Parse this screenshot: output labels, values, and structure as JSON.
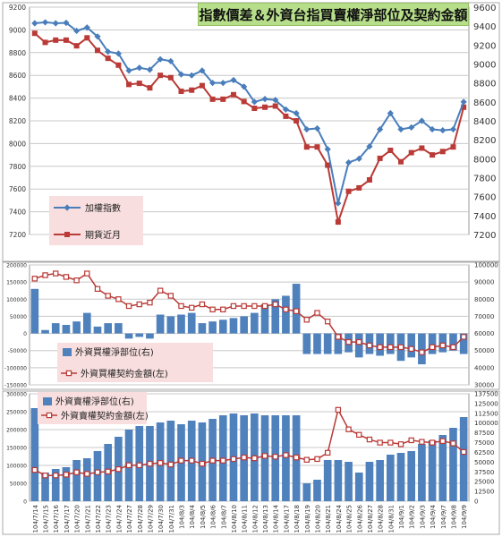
{
  "title": "指數價差＆外資台指買賣權淨部位及契約金額",
  "colors": {
    "blue": "#4a7ebb",
    "red": "#b93a36",
    "grid": "#c8c8c8",
    "legend_bg": "#f8dede",
    "bar": "#4f81bd"
  },
  "dates": [
    "104/7/14",
    "104/7/15",
    "104/7/16",
    "104/7/17",
    "104/7/20",
    "104/7/21",
    "104/7/22",
    "104/7/23",
    "104/7/24",
    "104/7/27",
    "104/7/28",
    "104/7/29",
    "104/7/30",
    "104/7/31",
    "104/8/3",
    "104/8/4",
    "104/8/5",
    "104/8/6",
    "104/8/7",
    "104/8/10",
    "104/8/11",
    "104/8/12",
    "104/8/13",
    "104/8/14",
    "104/8/17",
    "104/8/18",
    "104/8/19",
    "104/8/20",
    "104/8/21",
    "104/8/24",
    "104/8/25",
    "104/8/26",
    "104/8/27",
    "104/8/28",
    "104/8/31",
    "104/9/1",
    "104/9/2",
    "104/9/3",
    "104/9/4",
    "104/9/7",
    "104/9/8",
    "104/9/9"
  ],
  "chart_data": [
    {
      "type": "line",
      "title": "指數價差＆外資台指買賣權淨部位及契約金額",
      "ylim_left": [
        7200,
        9200
      ],
      "ylim_right": [
        7200,
        9600
      ],
      "yticks_left": [
        "7200",
        "7400",
        "7600",
        "7800",
        "8000",
        "8200",
        "8400",
        "8600",
        "8800",
        "9000",
        "9200"
      ],
      "yticks_right": [
        "7200",
        "7400",
        "7600",
        "7800",
        "8000",
        "8200",
        "8400",
        "8600",
        "8800",
        "9000",
        "9200",
        "9400",
        "9600"
      ],
      "series": [
        {
          "name": "加權指數",
          "axis": "right",
          "values": [
            9430,
            9440,
            9430,
            9435,
            9350,
            9385,
            9290,
            9130,
            9110,
            8930,
            8960,
            8940,
            9050,
            9030,
            8890,
            8880,
            8930,
            8800,
            8800,
            8830,
            8760,
            8600,
            8630,
            8620,
            8520,
            8480,
            8310,
            8320,
            8100,
            7530,
            7960,
            8000,
            8130,
            8310,
            8480,
            8310,
            8330,
            8400,
            8310,
            8300,
            8310,
            8600
          ]
        },
        {
          "name": "期貨近月",
          "axis": "left",
          "values": [
            8970,
            8890,
            8910,
            8910,
            8860,
            8930,
            8820,
            8750,
            8690,
            8520,
            8530,
            8490,
            8600,
            8580,
            8460,
            8470,
            8510,
            8390,
            8390,
            8430,
            8370,
            8310,
            8320,
            8330,
            8240,
            8200,
            7970,
            7970,
            7810,
            7310,
            7580,
            7610,
            7680,
            7870,
            7940,
            7840,
            7920,
            7960,
            7900,
            7930,
            7970,
            8320
          ]
        }
      ]
    },
    {
      "type": "bar",
      "ylim_left": [
        -150000,
        200000
      ],
      "ylim_right": [
        30000,
        100000
      ],
      "yticks_left": [
        "-150000",
        "-100000",
        "-50000",
        "0",
        "50000",
        "100000",
        "150000",
        "200000"
      ],
      "yticks_right": [
        "30000",
        "40000",
        "50000",
        "60000",
        "70000",
        "80000",
        "90000",
        "100000"
      ],
      "series": [
        {
          "name": "外資買權淨部位(右)",
          "kind": "bar",
          "axis": "left",
          "values": [
            130000,
            10000,
            30000,
            25000,
            35000,
            60000,
            20000,
            30000,
            30000,
            -15000,
            -10000,
            -15000,
            55000,
            50000,
            55000,
            60000,
            30000,
            35000,
            40000,
            45000,
            50000,
            60000,
            85000,
            100000,
            110000,
            145000,
            -60000,
            -60000,
            -60000,
            -60000,
            -55000,
            -70000,
            -60000,
            -65000,
            -60000,
            -80000,
            -70000,
            -90000,
            -60000,
            -55000,
            -50000,
            -60000
          ]
        },
        {
          "name": "外資買權契約金額(左)",
          "kind": "line",
          "axis": "right",
          "values": [
            92000,
            94000,
            95000,
            93000,
            91000,
            95000,
            86000,
            82000,
            80000,
            76000,
            77000,
            78000,
            85000,
            82000,
            76000,
            75000,
            77000,
            74000,
            74000,
            76000,
            76000,
            76000,
            76000,
            77000,
            74000,
            73000,
            68000,
            72000,
            67000,
            58000,
            55000,
            55000,
            53000,
            52000,
            52000,
            52000,
            51000,
            49000,
            52000,
            53000,
            52000,
            58000
          ]
        }
      ]
    },
    {
      "type": "bar",
      "ylim_left": [
        0,
        300000
      ],
      "ylim_right": [
        0,
        137500
      ],
      "yticks_left": [
        "0",
        "50000",
        "100000",
        "150000",
        "200000",
        "250000",
        "300000"
      ],
      "yticks_right": [
        "0",
        "12500",
        "25000",
        "37500",
        "50000",
        "62500",
        "75000",
        "87500",
        "100000",
        "112500",
        "125000",
        "137500"
      ],
      "series": [
        {
          "name": "外資賣權淨部位(右)",
          "kind": "bar",
          "axis": "left",
          "values": [
            260000,
            80000,
            90000,
            95000,
            115000,
            120000,
            140000,
            160000,
            180000,
            200000,
            210000,
            210000,
            220000,
            225000,
            215000,
            225000,
            220000,
            230000,
            240000,
            245000,
            240000,
            245000,
            240000,
            240000,
            240000,
            240000,
            50000,
            60000,
            115000,
            115000,
            110000,
            80000,
            110000,
            115000,
            130000,
            135000,
            140000,
            160000,
            170000,
            185000,
            205000,
            235000
          ]
        },
        {
          "name": "外資賣權契約金額(左)",
          "kind": "line",
          "axis": "right",
          "values": [
            40000,
            33000,
            33000,
            34000,
            37000,
            35000,
            37000,
            38000,
            41000,
            46000,
            46000,
            48000,
            49000,
            47000,
            52000,
            52000,
            48000,
            52000,
            52000,
            54000,
            56000,
            55000,
            58000,
            57000,
            59000,
            56000,
            53000,
            54000,
            62000,
            117000,
            92000,
            85000,
            79000,
            75000,
            75000,
            73000,
            78000,
            76000,
            75000,
            77000,
            74000,
            63000
          ]
        }
      ]
    }
  ]
}
